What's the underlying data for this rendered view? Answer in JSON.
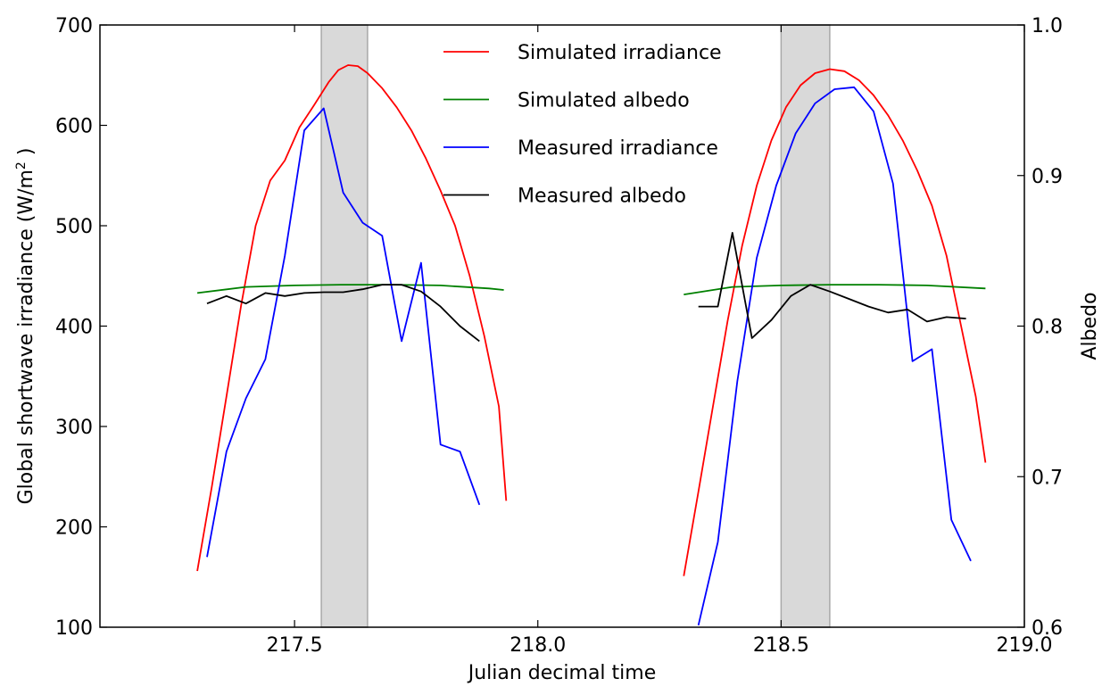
{
  "chart_data": {
    "type": "line",
    "title": "",
    "xlabel": "Julian decimal time",
    "ylabel": "Global shortwave irradiance (W/m",
    "ylabel_sup": "2",
    "ylabel_tail": " )",
    "y2label": "Albedo",
    "xlim": [
      217.1,
      219.0
    ],
    "ylim": [
      100,
      700
    ],
    "y2lim": [
      0.6,
      1.0
    ],
    "xticks": [
      217.5,
      218.0,
      218.5,
      219.0
    ],
    "xtick_labels": [
      "217.5",
      "218.0",
      "218.5",
      "219.0"
    ],
    "yticks": [
      100,
      200,
      300,
      400,
      500,
      600,
      700
    ],
    "ytick_labels": [
      "100",
      "200",
      "300",
      "400",
      "500",
      "600",
      "700"
    ],
    "y2ticks": [
      0.6,
      0.7,
      0.8,
      0.9,
      1.0
    ],
    "y2tick_labels": [
      "0.6",
      "0.7",
      "0.8",
      "0.9",
      "1.0"
    ],
    "grid": false,
    "legend_position": "top-center",
    "shaded_regions": [
      {
        "x0": 217.555,
        "x1": 217.65
      },
      {
        "x0": 218.5,
        "x1": 218.6
      }
    ],
    "series": [
      {
        "name": "Simulated irradiance",
        "color": "#ff0000",
        "axis": "left",
        "segments": [
          [
            [
              217.3,
              156
            ],
            [
              217.33,
              240
            ],
            [
              217.36,
              330
            ],
            [
              217.39,
              420
            ],
            [
              217.42,
              500
            ],
            [
              217.45,
              545
            ],
            [
              217.48,
              565
            ],
            [
              217.51,
              598
            ],
            [
              217.54,
              620
            ],
            [
              217.57,
              643
            ],
            [
              217.59,
              655
            ],
            [
              217.61,
              660
            ],
            [
              217.63,
              659
            ],
            [
              217.65,
              652
            ],
            [
              217.68,
              637
            ],
            [
              217.71,
              618
            ],
            [
              217.74,
              595
            ],
            [
              217.77,
              567
            ],
            [
              217.8,
              535
            ],
            [
              217.83,
              500
            ],
            [
              217.86,
              450
            ],
            [
              217.89,
              390
            ],
            [
              217.92,
              320
            ],
            [
              217.935,
              226
            ]
          ],
          [
            [
              218.3,
              151
            ],
            [
              218.33,
              235
            ],
            [
              218.36,
              320
            ],
            [
              218.39,
              405
            ],
            [
              218.42,
              480
            ],
            [
              218.45,
              540
            ],
            [
              218.48,
              585
            ],
            [
              218.51,
              618
            ],
            [
              218.54,
              640
            ],
            [
              218.57,
              652
            ],
            [
              218.6,
              656
            ],
            [
              218.63,
              654
            ],
            [
              218.66,
              645
            ],
            [
              218.69,
              630
            ],
            [
              218.72,
              610
            ],
            [
              218.75,
              585
            ],
            [
              218.78,
              555
            ],
            [
              218.81,
              520
            ],
            [
              218.84,
              470
            ],
            [
              218.87,
              400
            ],
            [
              218.9,
              330
            ],
            [
              218.92,
              264
            ]
          ]
        ]
      },
      {
        "name": "Simulated albedo",
        "color": "#008000",
        "axis": "right",
        "segments": [
          [
            [
              217.3,
              0.822
            ],
            [
              217.4,
              0.826
            ],
            [
              217.5,
              0.827
            ],
            [
              217.6,
              0.8275
            ],
            [
              217.7,
              0.8275
            ],
            [
              217.8,
              0.827
            ],
            [
              217.9,
              0.825
            ],
            [
              217.93,
              0.824
            ]
          ],
          [
            [
              218.3,
              0.821
            ],
            [
              218.4,
              0.826
            ],
            [
              218.5,
              0.827
            ],
            [
              218.6,
              0.8275
            ],
            [
              218.7,
              0.8275
            ],
            [
              218.8,
              0.827
            ],
            [
              218.92,
              0.825
            ]
          ]
        ]
      },
      {
        "name": "Measured irradiance",
        "color": "#0000ff",
        "axis": "left",
        "segments": [
          [
            [
              217.32,
              170
            ],
            [
              217.36,
              275
            ],
            [
              217.4,
              328
            ],
            [
              217.44,
              367
            ],
            [
              217.48,
              470
            ],
            [
              217.52,
              595
            ],
            [
              217.56,
              617
            ],
            [
              217.6,
              533
            ],
            [
              217.64,
              503
            ],
            [
              217.68,
              490
            ],
            [
              217.72,
              385
            ],
            [
              217.76,
              463
            ],
            [
              217.8,
              282
            ],
            [
              217.84,
              275
            ],
            [
              217.88,
              222
            ]
          ],
          [
            [
              218.33,
              102
            ],
            [
              218.37,
              185
            ],
            [
              218.41,
              345
            ],
            [
              218.45,
              468
            ],
            [
              218.49,
              540
            ],
            [
              218.53,
              592
            ],
            [
              218.57,
              622
            ],
            [
              218.61,
              636
            ],
            [
              218.65,
              638
            ],
            [
              218.69,
              614
            ],
            [
              218.73,
              542
            ],
            [
              218.77,
              365
            ],
            [
              218.81,
              377
            ],
            [
              218.85,
              207
            ],
            [
              218.89,
              166
            ]
          ]
        ]
      },
      {
        "name": "Measured albedo",
        "color": "#000000",
        "axis": "right",
        "segments": [
          [
            [
              217.32,
              0.815
            ],
            [
              217.36,
              0.82
            ],
            [
              217.4,
              0.815
            ],
            [
              217.44,
              0.822
            ],
            [
              217.48,
              0.82
            ],
            [
              217.52,
              0.822
            ],
            [
              217.56,
              0.8225
            ],
            [
              217.6,
              0.8225
            ],
            [
              217.64,
              0.8245
            ],
            [
              217.68,
              0.8275
            ],
            [
              217.72,
              0.8275
            ],
            [
              217.76,
              0.823
            ],
            [
              217.8,
              0.813
            ],
            [
              217.84,
              0.8
            ],
            [
              217.88,
              0.79
            ]
          ],
          [
            [
              218.33,
              0.813
            ],
            [
              218.37,
              0.813
            ],
            [
              218.4,
              0.862
            ],
            [
              218.44,
              0.792
            ],
            [
              218.48,
              0.804
            ],
            [
              218.52,
              0.82
            ],
            [
              218.56,
              0.8275
            ],
            [
              218.6,
              0.823
            ],
            [
              218.64,
              0.818
            ],
            [
              218.68,
              0.813
            ],
            [
              218.72,
              0.809
            ],
            [
              218.76,
              0.811
            ],
            [
              218.8,
              0.803
            ],
            [
              218.84,
              0.806
            ],
            [
              218.88,
              0.805
            ]
          ]
        ]
      }
    ]
  }
}
